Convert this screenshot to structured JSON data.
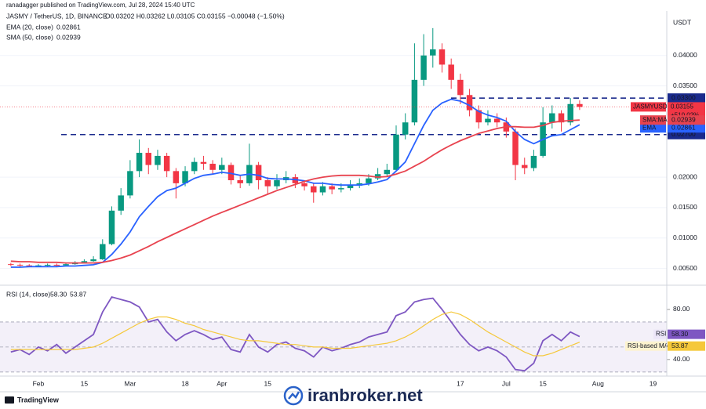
{
  "header": {
    "attribution": "ranadagger published on TradingView.com, Jul 28, 2024 15:40 UTC"
  },
  "footer": {
    "brand": "TradingView",
    "watermark": "iranbroker.net"
  },
  "chart_data": [
    {
      "type": "candlestick",
      "title": "JASMY / TetherUS, 1D, BINANCE",
      "quote": "O0.03202 H0.03262 L0.03105 C0.03155 −0.00048 (−1.50%)",
      "currency": "USDT",
      "up_color": "#089981",
      "down_color": "#f23645",
      "categories": [
        null,
        null,
        null,
        "Feb",
        null,
        null,
        null,
        null,
        "15",
        null,
        null,
        null,
        null,
        "Mar",
        null,
        null,
        null,
        null,
        null,
        "18",
        null,
        null,
        null,
        "Apr",
        null,
        null,
        null,
        null,
        "15",
        null,
        null,
        null,
        null,
        null,
        null,
        null,
        null,
        null,
        null,
        null,
        null,
        null,
        null,
        null,
        null,
        null,
        null,
        null,
        null,
        "17",
        null,
        null,
        null,
        null,
        "Jul",
        null,
        null,
        null,
        "15",
        null,
        null,
        null,
        null,
        null,
        "Aug",
        null,
        null,
        null,
        null,
        null,
        "19",
        null
      ],
      "open": [
        0.0057,
        0.0056,
        0.0055,
        0.0054,
        0.0055,
        0.0056,
        0.0055,
        0.0057,
        0.006,
        0.0062,
        0.0065,
        0.009,
        0.0145,
        0.017,
        0.021,
        0.024,
        0.022,
        0.0235,
        0.021,
        0.019,
        0.021,
        0.0225,
        0.0222,
        0.0212,
        0.022,
        0.0195,
        0.019,
        0.022,
        0.0195,
        0.0185,
        0.0195,
        0.02,
        0.019,
        0.0185,
        0.0175,
        0.0185,
        0.018,
        0.0182,
        0.0186,
        0.019,
        0.0198,
        0.0205,
        0.0212,
        0.027,
        0.029,
        0.036,
        0.04,
        0.041,
        0.0385,
        0.036,
        0.0335,
        0.031,
        0.029,
        0.0296,
        0.029,
        0.0275,
        0.022,
        0.0215,
        0.0235,
        0.029,
        0.0305,
        0.029,
        0.03202,
        null,
        null,
        null,
        null,
        null,
        null,
        null,
        null,
        null
      ],
      "high": [
        0.0059,
        0.0058,
        0.0057,
        0.0057,
        0.0058,
        0.0058,
        0.0059,
        0.0062,
        0.0065,
        0.007,
        0.0098,
        0.0152,
        0.0182,
        0.0228,
        0.0262,
        0.0248,
        0.0245,
        0.024,
        0.0215,
        0.0218,
        0.0232,
        0.0235,
        0.0228,
        0.0232,
        0.0224,
        0.0202,
        0.0255,
        0.0225,
        0.02,
        0.0205,
        0.021,
        0.0205,
        0.0195,
        0.019,
        0.0192,
        0.019,
        0.019,
        0.0195,
        0.0198,
        0.0205,
        0.0215,
        0.0222,
        0.0285,
        0.0305,
        0.042,
        0.0435,
        0.0445,
        0.042,
        0.0395,
        0.037,
        0.0345,
        0.0318,
        0.031,
        0.0305,
        0.0298,
        0.028,
        0.0232,
        0.0245,
        0.0315,
        0.0318,
        0.031,
        0.033,
        0.03262,
        null,
        null,
        null,
        null,
        null,
        null,
        null,
        null,
        null
      ],
      "low": [
        0.0054,
        0.0053,
        0.0052,
        0.0053,
        0.0054,
        0.0053,
        0.0054,
        0.0056,
        0.0059,
        0.0061,
        0.0064,
        0.0088,
        0.0138,
        0.0165,
        0.02,
        0.0205,
        0.0212,
        0.02,
        0.0165,
        0.0185,
        0.0205,
        0.0212,
        0.0205,
        0.0205,
        0.0188,
        0.0182,
        0.0186,
        0.018,
        0.0172,
        0.018,
        0.019,
        0.0182,
        0.0178,
        0.0158,
        0.017,
        0.0172,
        0.0175,
        0.0178,
        0.0182,
        0.0186,
        0.0195,
        0.02,
        0.021,
        0.0262,
        0.0285,
        0.035,
        0.038,
        0.0372,
        0.0345,
        0.032,
        0.03,
        0.028,
        0.0285,
        0.0282,
        0.0265,
        0.0195,
        0.0205,
        0.021,
        0.0232,
        0.028,
        0.0275,
        0.0285,
        0.03105,
        null,
        null,
        null,
        null,
        null,
        null,
        null,
        null,
        null
      ],
      "close": [
        0.0056,
        0.0055,
        0.0054,
        0.0055,
        0.0056,
        0.0055,
        0.0057,
        0.006,
        0.0062,
        0.0065,
        0.009,
        0.0145,
        0.017,
        0.021,
        0.024,
        0.022,
        0.0235,
        0.021,
        0.019,
        0.021,
        0.0225,
        0.0222,
        0.0212,
        0.022,
        0.0195,
        0.019,
        0.022,
        0.0195,
        0.0185,
        0.0195,
        0.02,
        0.019,
        0.0185,
        0.0175,
        0.0185,
        0.018,
        0.0182,
        0.0186,
        0.019,
        0.0198,
        0.0205,
        0.0212,
        0.027,
        0.029,
        0.036,
        0.04,
        0.041,
        0.0385,
        0.036,
        0.0335,
        0.031,
        0.029,
        0.0296,
        0.029,
        0.0275,
        0.022,
        0.0215,
        0.0235,
        0.029,
        0.0305,
        0.029,
        0.03202,
        0.03155,
        null,
        null,
        null,
        null,
        null,
        null,
        null,
        null,
        null
      ],
      "price_tag": {
        "name": "JASMYUSDT",
        "lines": [
          "0.03155",
          "+510.02%",
          "08:19:55"
        ]
      },
      "series": [
        {
          "name": "EMA (20, close)",
          "tag": "EMA",
          "color": "#2962ff",
          "value_label": "0.02861",
          "values": [
            0.0052,
            0.0052,
            0.0053,
            0.0053,
            0.0053,
            0.0053,
            0.0054,
            0.0054,
            0.0055,
            0.0056,
            0.006,
            0.0073,
            0.009,
            0.011,
            0.0135,
            0.0152,
            0.0168,
            0.0178,
            0.0182,
            0.019,
            0.0198,
            0.0203,
            0.0205,
            0.0208,
            0.0206,
            0.0203,
            0.0205,
            0.0203,
            0.0198,
            0.0197,
            0.0197,
            0.0196,
            0.0194,
            0.019,
            0.019,
            0.0188,
            0.0187,
            0.0187,
            0.0187,
            0.0189,
            0.0192,
            0.0196,
            0.021,
            0.0225,
            0.0255,
            0.0285,
            0.031,
            0.0322,
            0.0328,
            0.0325,
            0.0318,
            0.0308,
            0.0302,
            0.0298,
            0.0292,
            0.0275,
            0.0262,
            0.0255,
            0.0262,
            0.0268,
            0.027,
            0.0278,
            0.02861,
            null,
            null,
            null,
            null,
            null,
            null,
            null,
            null,
            null
          ]
        },
        {
          "name": "SMA (50, close)",
          "tag": "SMA:MA",
          "color": "#e8434f",
          "value_label": "0.02939",
          "values": [
            0.0062,
            0.0061,
            0.0061,
            0.006,
            0.006,
            0.006,
            0.0059,
            0.0059,
            0.0059,
            0.0059,
            0.006,
            0.0063,
            0.0067,
            0.0072,
            0.0079,
            0.0086,
            0.0094,
            0.0101,
            0.0108,
            0.0115,
            0.0122,
            0.0129,
            0.0136,
            0.0142,
            0.0148,
            0.0154,
            0.016,
            0.0166,
            0.0172,
            0.0178,
            0.0183,
            0.0188,
            0.0193,
            0.0197,
            0.02,
            0.0202,
            0.0203,
            0.0203,
            0.0203,
            0.0202,
            0.02,
            0.0201,
            0.0205,
            0.021,
            0.0218,
            0.0226,
            0.0236,
            0.0245,
            0.0253,
            0.026,
            0.0266,
            0.0272,
            0.0276,
            0.028,
            0.0283,
            0.0283,
            0.0282,
            0.0282,
            0.0285,
            0.029,
            0.0292,
            0.0293,
            0.02939,
            null,
            null,
            null,
            null,
            null,
            null,
            null,
            null,
            null
          ]
        }
      ],
      "levels": [
        {
          "value": 0.033,
          "label": "0.03300"
        },
        {
          "value": 0.027,
          "label": "0.02700"
        }
      ],
      "level_color": "#1a2a8c",
      "ylim": [
        0.0025,
        0.0468
      ],
      "yticks": [
        {
          "value": 0.005,
          "label": "0.00500"
        },
        {
          "value": 0.01,
          "label": "0.01000"
        },
        {
          "value": 0.015,
          "label": "0.01500"
        },
        {
          "value": 0.02,
          "label": "0.02000"
        },
        {
          "value": 0.035,
          "label": "0.03500"
        },
        {
          "value": 0.04,
          "label": "0.04000"
        }
      ],
      "grid": true
    },
    {
      "type": "line",
      "title": "RSI (14, close)",
      "series": [
        {
          "name": "RSI",
          "color": "#7e57c2",
          "value_label": "58.30",
          "values": [
            46,
            48,
            44,
            50,
            47,
            52,
            45,
            50,
            55,
            60,
            78,
            90,
            88,
            86,
            82,
            70,
            72,
            62,
            55,
            60,
            63,
            60,
            56,
            58,
            48,
            46,
            60,
            50,
            46,
            52,
            54,
            49,
            47,
            42,
            50,
            47,
            49,
            52,
            54,
            58,
            60,
            62,
            75,
            78,
            86,
            88,
            89,
            80,
            70,
            60,
            52,
            47,
            50,
            47,
            42,
            32,
            31,
            37,
            55,
            60,
            55,
            62,
            58.3,
            null,
            null,
            null,
            null,
            null,
            null,
            null,
            null,
            null
          ]
        },
        {
          "name": "RSI-based MA",
          "color": "#f5c83a",
          "value_label": "53.87",
          "values": [
            48,
            48,
            48,
            48,
            48,
            48,
            48,
            48,
            49,
            50,
            53,
            57,
            61,
            65,
            69,
            72,
            74,
            74,
            72,
            69,
            67,
            64,
            62,
            60,
            58,
            56,
            55,
            55,
            54,
            53,
            52,
            52,
            51,
            50,
            50,
            49,
            49,
            49,
            50,
            51,
            52,
            53,
            55,
            58,
            62,
            67,
            72,
            76,
            78,
            76,
            72,
            67,
            62,
            58,
            54,
            50,
            46,
            43,
            43,
            45,
            48,
            51,
            53.87,
            null,
            null,
            null,
            null,
            null,
            null,
            null,
            null,
            null
          ]
        }
      ],
      "band": [
        30,
        70
      ],
      "midline": 50,
      "ylim": [
        28,
        97.5
      ],
      "yticks": [
        {
          "value": 40,
          "label": "40.00"
        },
        {
          "value": 80,
          "label": "80.00"
        }
      ]
    }
  ]
}
